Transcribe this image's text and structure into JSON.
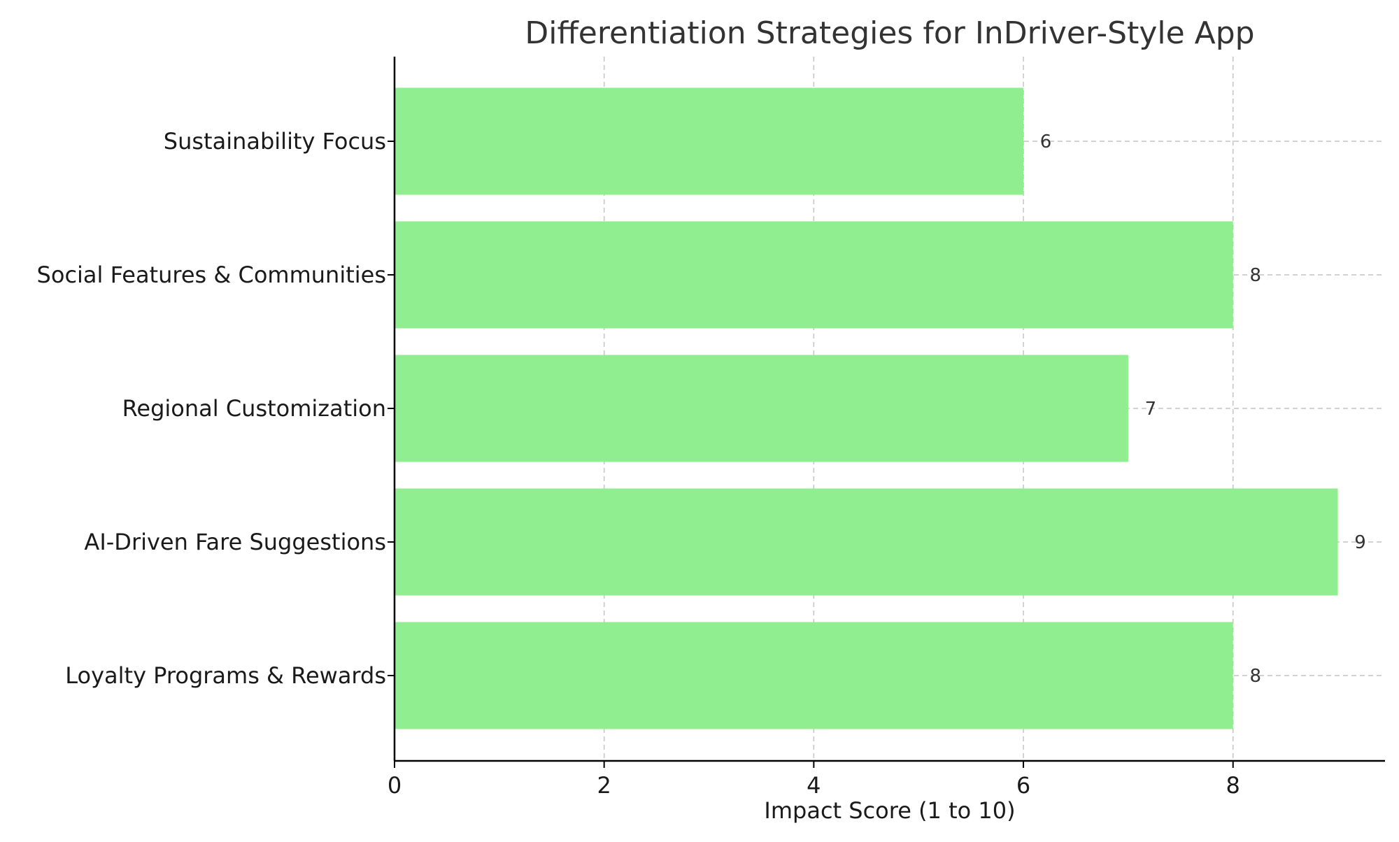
{
  "chart_data": {
    "type": "bar",
    "orientation": "horizontal",
    "title": "Differentiation Strategies for InDriver-Style App",
    "xlabel": "Impact Score (1 to 10)",
    "ylabel": "",
    "categories": [
      "Loyalty Programs & Rewards",
      "AI-Driven Fare Suggestions",
      "Regional Customization",
      "Social Features & Communities",
      "Sustainability Focus"
    ],
    "values": [
      8,
      9,
      7,
      8,
      6
    ],
    "data_labels": [
      "8",
      "9",
      "7",
      "8",
      "6"
    ],
    "xlim": [
      0,
      9.45
    ],
    "xticks": [
      0,
      2,
      4,
      6,
      8
    ],
    "xtick_labels": [
      "0",
      "2",
      "4",
      "6",
      "8"
    ],
    "grid": true,
    "legend": "none",
    "colors": {
      "bar": "#90ee90",
      "grid": "#c4c4c4",
      "axis": "#000000",
      "title": "#333333",
      "text": "#1a1a1a"
    }
  }
}
